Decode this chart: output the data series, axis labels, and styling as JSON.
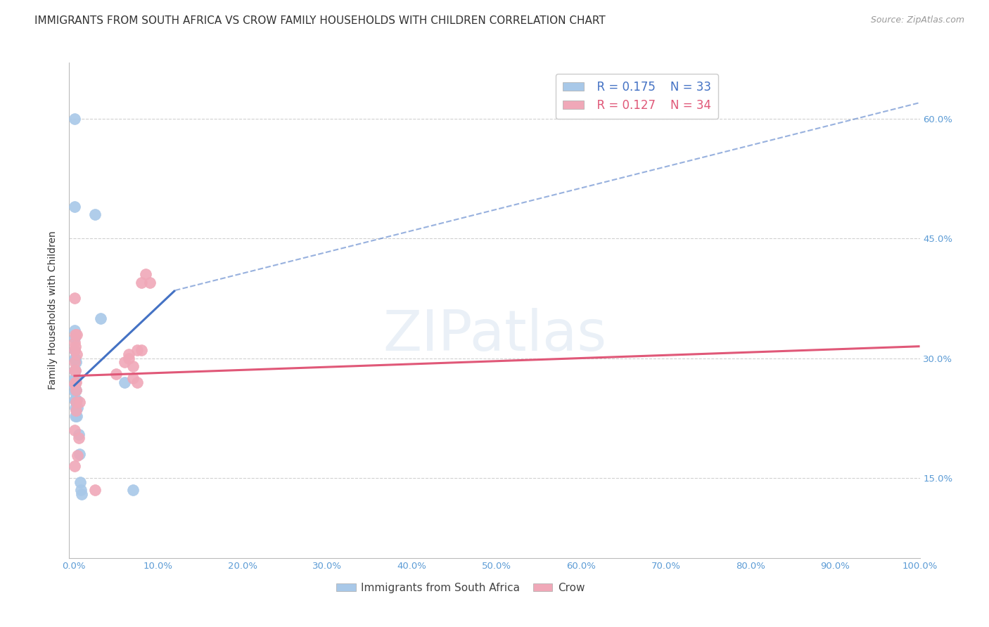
{
  "title": "IMMIGRANTS FROM SOUTH AFRICA VS CROW FAMILY HOUSEHOLDS WITH CHILDREN CORRELATION CHART",
  "source": "Source: ZipAtlas.com",
  "ylabel": "Family Households with Children",
  "watermark": "ZIPatlas",
  "legend": {
    "blue_r": "R = 0.175",
    "blue_n": "N = 33",
    "pink_r": "R = 0.127",
    "pink_n": "N = 34"
  },
  "blue_points": [
    [
      0.001,
      0.6
    ],
    [
      0.001,
      0.49
    ],
    [
      0.001,
      0.335
    ],
    [
      0.001,
      0.325
    ],
    [
      0.001,
      0.31
    ],
    [
      0.001,
      0.3
    ],
    [
      0.001,
      0.285
    ],
    [
      0.001,
      0.275
    ],
    [
      0.001,
      0.265
    ],
    [
      0.001,
      0.258
    ],
    [
      0.001,
      0.248
    ],
    [
      0.002,
      0.3
    ],
    [
      0.002,
      0.285
    ],
    [
      0.002,
      0.275
    ],
    [
      0.002,
      0.26
    ],
    [
      0.002,
      0.248
    ],
    [
      0.002,
      0.238
    ],
    [
      0.002,
      0.228
    ],
    [
      0.003,
      0.295
    ],
    [
      0.003,
      0.275
    ],
    [
      0.003,
      0.26
    ],
    [
      0.004,
      0.248
    ],
    [
      0.004,
      0.228
    ],
    [
      0.005,
      0.238
    ],
    [
      0.006,
      0.205
    ],
    [
      0.007,
      0.18
    ],
    [
      0.008,
      0.145
    ],
    [
      0.009,
      0.135
    ],
    [
      0.01,
      0.13
    ],
    [
      0.025,
      0.48
    ],
    [
      0.032,
      0.35
    ],
    [
      0.06,
      0.27
    ],
    [
      0.07,
      0.135
    ]
  ],
  "pink_points": [
    [
      0.001,
      0.375
    ],
    [
      0.001,
      0.32
    ],
    [
      0.001,
      0.31
    ],
    [
      0.001,
      0.295
    ],
    [
      0.001,
      0.285
    ],
    [
      0.001,
      0.268
    ],
    [
      0.001,
      0.21
    ],
    [
      0.001,
      0.165
    ],
    [
      0.002,
      0.33
    ],
    [
      0.002,
      0.315
    ],
    [
      0.002,
      0.285
    ],
    [
      0.002,
      0.27
    ],
    [
      0.003,
      0.27
    ],
    [
      0.003,
      0.26
    ],
    [
      0.003,
      0.245
    ],
    [
      0.003,
      0.235
    ],
    [
      0.004,
      0.33
    ],
    [
      0.004,
      0.305
    ],
    [
      0.005,
      0.178
    ],
    [
      0.006,
      0.2
    ],
    [
      0.007,
      0.245
    ],
    [
      0.025,
      0.135
    ],
    [
      0.05,
      0.28
    ],
    [
      0.06,
      0.295
    ],
    [
      0.065,
      0.305
    ],
    [
      0.065,
      0.3
    ],
    [
      0.07,
      0.29
    ],
    [
      0.07,
      0.275
    ],
    [
      0.075,
      0.31
    ],
    [
      0.075,
      0.27
    ],
    [
      0.08,
      0.31
    ],
    [
      0.08,
      0.395
    ],
    [
      0.085,
      0.405
    ],
    [
      0.09,
      0.395
    ]
  ],
  "blue_line_solid": {
    "x0": 0.0,
    "y0": 0.265,
    "x1": 0.12,
    "y1": 0.385
  },
  "blue_line_dashed": {
    "x0": 0.12,
    "y0": 0.385,
    "x1": 1.0,
    "y1": 0.62
  },
  "pink_line": {
    "x0": 0.0,
    "y0": 0.278,
    "x1": 1.0,
    "y1": 0.315
  },
  "xlim": [
    -0.005,
    1.0
  ],
  "ylim": [
    0.05,
    0.67
  ],
  "xticks": [
    0.0,
    0.1,
    0.2,
    0.3,
    0.4,
    0.5,
    0.6,
    0.7,
    0.8,
    0.9,
    1.0
  ],
  "yticks": [
    0.15,
    0.3,
    0.45,
    0.6
  ],
  "ytick_labels": [
    "15.0%",
    "30.0%",
    "45.0%",
    "60.0%"
  ],
  "blue_color": "#a8c8e8",
  "pink_color": "#f0a8b8",
  "blue_line_color": "#4472c4",
  "pink_line_color": "#e05878",
  "axis_color": "#5b9bd5",
  "grid_color": "#d0d0d0",
  "bg_color": "#ffffff",
  "title_fontsize": 11,
  "label_fontsize": 10,
  "tick_fontsize": 9.5
}
